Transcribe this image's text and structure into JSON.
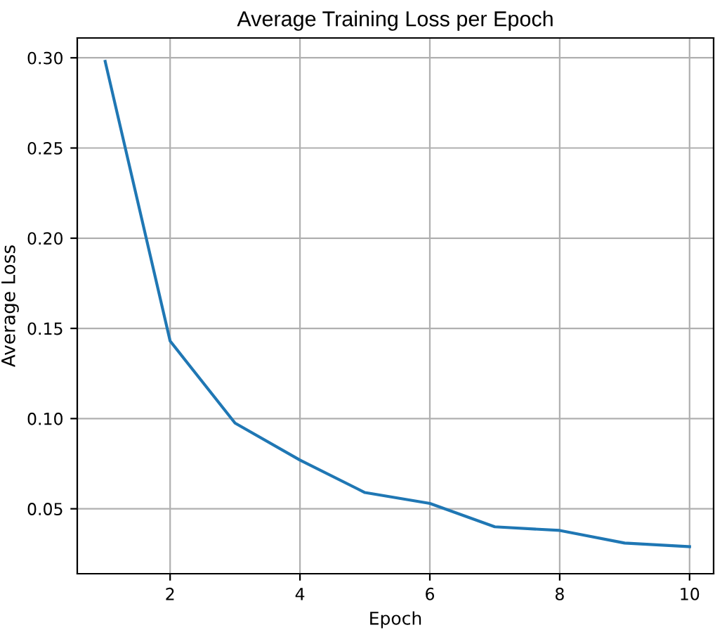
{
  "chart_data": {
    "type": "line",
    "title": "Average Training Loss per Epoch",
    "xlabel": "Epoch",
    "ylabel": "Average Loss",
    "x": [
      1,
      2,
      3,
      4,
      5,
      6,
      7,
      8,
      9,
      10
    ],
    "series": [
      {
        "color": "#1f77b4",
        "values": [
          0.298,
          0.143,
          0.0975,
          0.077,
          0.059,
          0.053,
          0.04,
          0.038,
          0.031,
          0.029
        ]
      }
    ],
    "xlim": [
      0.57,
      10.37
    ],
    "ylim": [
      0.014,
      0.311
    ],
    "xticks": [
      2,
      4,
      6,
      8,
      10
    ],
    "yticks": [
      {
        "value": 0.05,
        "label": "0.05"
      },
      {
        "value": 0.1,
        "label": "0.10"
      },
      {
        "value": 0.15,
        "label": "0.15"
      },
      {
        "value": 0.2,
        "label": "0.20"
      },
      {
        "value": 0.25,
        "label": "0.25"
      },
      {
        "value": 0.3,
        "label": "0.30"
      }
    ],
    "grid": true
  }
}
